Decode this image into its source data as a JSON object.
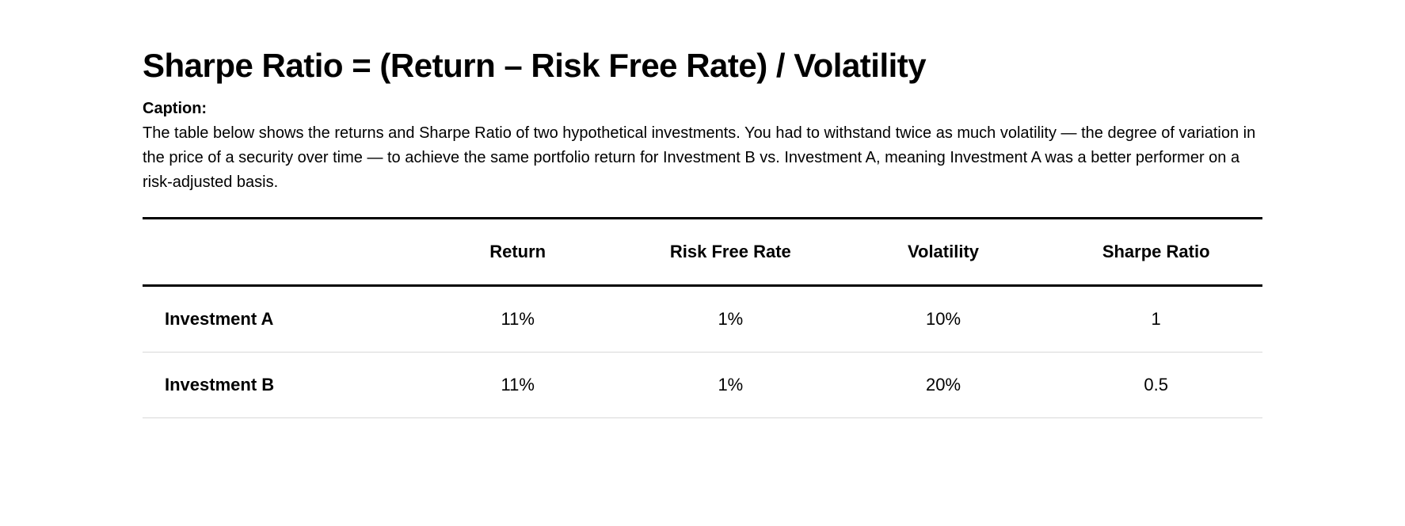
{
  "title": "Sharpe Ratio = (Return – Risk Free Rate) / Volatility",
  "caption_label": "Caption:",
  "caption_text": "The table below shows the returns and Sharpe Ratio of two hypothetical investments. You had to withstand twice as much volatility — the degree of variation in the price of a security over time — to achieve the same portfolio return for Investment B vs. Investment A, meaning Investment A was a better performer on a risk-adjusted basis.",
  "table": {
    "type": "table",
    "columns": [
      "",
      "Return",
      "Risk Free Rate",
      "Volatility",
      "Sharpe Ratio"
    ],
    "rows": [
      [
        "Investment A",
        "11%",
        "1%",
        "10%",
        "1"
      ],
      [
        "Investment B",
        "11%",
        "1%",
        "20%",
        "0.5"
      ]
    ],
    "column_alignment": [
      "left",
      "center",
      "center",
      "center",
      "center"
    ],
    "header_fontsize": 22,
    "header_fontweight": 700,
    "cell_fontsize": 22,
    "row_label_fontweight": 700,
    "border_top_color": "#000000",
    "border_top_width": 3,
    "header_bottom_border_color": "#000000",
    "header_bottom_border_width": 3,
    "row_border_color": "#d8d8d8",
    "row_border_width": 1,
    "background_color": "#ffffff"
  },
  "styling": {
    "title_fontsize": 42,
    "title_fontweight": 900,
    "caption_fontsize": 20,
    "body_text_color": "#000000",
    "background_color": "#ffffff"
  }
}
